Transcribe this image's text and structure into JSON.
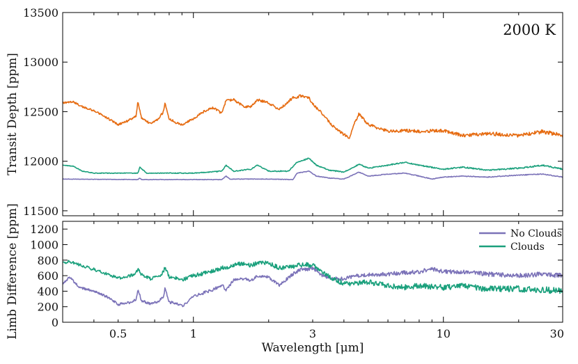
{
  "chart_data": [
    {
      "type": "line",
      "panel": "top",
      "annotation": "2000 K",
      "xlabel": "",
      "ylabel": "Transit Depth [ppm]",
      "xscale": "log",
      "xlim": [
        0.3,
        30
      ],
      "ylim": [
        11450,
        13500
      ],
      "yticks": [
        11500,
        12000,
        12500,
        13000,
        13500
      ],
      "yticklabels": [
        "11500",
        "12000",
        "12500",
        "13000",
        "13500"
      ],
      "series": [
        {
          "name": "Orange spectrum",
          "color": "#e66c12",
          "noise": 14,
          "x": [
            0.3,
            0.33,
            0.36,
            0.4,
            0.45,
            0.5,
            0.55,
            0.59,
            0.6,
            0.62,
            0.67,
            0.72,
            0.76,
            0.77,
            0.8,
            0.85,
            0.9,
            0.95,
            1.0,
            1.1,
            1.2,
            1.3,
            1.35,
            1.45,
            1.6,
            1.7,
            1.8,
            2.0,
            2.2,
            2.5,
            2.7,
            2.9,
            3.0,
            3.3,
            3.6,
            3.9,
            4.2,
            4.4,
            4.6,
            5.0,
            6.0,
            7.0,
            8.0,
            10.0,
            12.0,
            15.0,
            20.0,
            25.0,
            30.0
          ],
          "y": [
            12590,
            12600,
            12550,
            12510,
            12440,
            12370,
            12410,
            12460,
            12600,
            12440,
            12380,
            12420,
            12500,
            12590,
            12430,
            12390,
            12370,
            12400,
            12430,
            12500,
            12540,
            12480,
            12610,
            12620,
            12550,
            12550,
            12620,
            12590,
            12520,
            12640,
            12660,
            12640,
            12580,
            12470,
            12360,
            12290,
            12230,
            12380,
            12480,
            12370,
            12300,
            12310,
            12300,
            12310,
            12260,
            12280,
            12260,
            12300,
            12260
          ]
        },
        {
          "name": "Green spectrum",
          "color": "#1aa07c",
          "noise": 5,
          "x": [
            0.3,
            0.33,
            0.36,
            0.4,
            0.6,
            0.61,
            0.65,
            1.0,
            1.3,
            1.35,
            1.45,
            1.7,
            1.8,
            2.0,
            2.4,
            2.6,
            2.9,
            3.1,
            3.5,
            4.0,
            4.6,
            5.0,
            6.0,
            7.0,
            8.0,
            10.0,
            12.0,
            15.0,
            20.0,
            25.0,
            30.0
          ],
          "y": [
            11960,
            11950,
            11900,
            11880,
            11880,
            11940,
            11880,
            11880,
            11900,
            11960,
            11900,
            11920,
            11960,
            11900,
            11900,
            11990,
            12030,
            11960,
            11910,
            11890,
            11970,
            11930,
            11960,
            11990,
            11960,
            11920,
            11940,
            11910,
            11930,
            11960,
            11920
          ]
        },
        {
          "name": "Purple spectrum",
          "color": "#7b72b8",
          "noise": 3,
          "x": [
            0.3,
            0.6,
            0.61,
            0.62,
            1.0,
            1.3,
            1.35,
            1.4,
            2.0,
            2.5,
            2.6,
            2.9,
            3.1,
            3.5,
            4.0,
            4.6,
            5.0,
            6.0,
            7.0,
            8.0,
            9.0,
            10.0,
            12.0,
            15.0,
            20.0,
            25.0,
            30.0
          ],
          "y": [
            11820,
            11815,
            11830,
            11815,
            11815,
            11815,
            11850,
            11820,
            11820,
            11815,
            11880,
            11900,
            11850,
            11830,
            11820,
            11890,
            11850,
            11870,
            11880,
            11850,
            11820,
            11840,
            11850,
            11840,
            11860,
            11870,
            11840
          ]
        }
      ]
    },
    {
      "type": "line",
      "panel": "bottom",
      "xlabel": "Wavelength [μm]",
      "ylabel": "Limb Difference [ppm]",
      "xscale": "log",
      "xlim": [
        0.3,
        30
      ],
      "ylim": [
        0,
        1300
      ],
      "yticks": [
        0,
        200,
        400,
        600,
        800,
        1000,
        1200
      ],
      "yticklabels": [
        "0",
        "200",
        "400",
        "600",
        "800",
        "1000",
        "1200"
      ],
      "xticks": [
        0.5,
        1,
        3,
        10,
        30
      ],
      "xticklabels": [
        "0.5",
        "1",
        "3",
        "10",
        "30"
      ],
      "legend": {
        "location": "top-right",
        "entries": [
          "No Clouds",
          "Clouds"
        ]
      },
      "series": [
        {
          "name": "No Clouds",
          "color": "#7b72b8",
          "noise": 22,
          "x": [
            0.3,
            0.32,
            0.35,
            0.4,
            0.45,
            0.5,
            0.55,
            0.59,
            0.6,
            0.62,
            0.67,
            0.72,
            0.76,
            0.77,
            0.8,
            0.85,
            0.9,
            0.95,
            1.0,
            1.1,
            1.2,
            1.3,
            1.35,
            1.45,
            1.6,
            1.7,
            1.8,
            2.0,
            2.2,
            2.5,
            2.7,
            2.9,
            3.0,
            3.3,
            3.6,
            4.0,
            4.5,
            5.0,
            6.0,
            7.0,
            8.0,
            9.0,
            10.0,
            12.0,
            15.0,
            20.0,
            25.0,
            30.0
          ],
          "y": [
            500,
            580,
            450,
            400,
            330,
            230,
            250,
            290,
            420,
            280,
            240,
            260,
            330,
            440,
            260,
            240,
            210,
            260,
            330,
            380,
            420,
            480,
            420,
            540,
            560,
            530,
            600,
            580,
            480,
            620,
            680,
            680,
            700,
            600,
            560,
            560,
            600,
            610,
            620,
            640,
            650,
            690,
            650,
            650,
            620,
            600,
            620,
            600
          ]
        },
        {
          "name": "Clouds",
          "color": "#1aa07c",
          "noise": 30,
          "x": [
            0.3,
            0.32,
            0.35,
            0.4,
            0.45,
            0.5,
            0.55,
            0.59,
            0.6,
            0.62,
            0.67,
            0.72,
            0.76,
            0.77,
            0.8,
            0.85,
            0.9,
            0.95,
            1.0,
            1.1,
            1.2,
            1.3,
            1.35,
            1.45,
            1.6,
            1.7,
            1.8,
            2.0,
            2.2,
            2.5,
            2.7,
            2.9,
            3.0,
            3.3,
            3.6,
            4.0,
            4.5,
            5.0,
            6.0,
            7.0,
            8.0,
            10.0,
            12.0,
            15.0,
            20.0,
            25.0,
            30.0
          ],
          "y": [
            760,
            780,
            740,
            680,
            620,
            570,
            590,
            630,
            700,
            610,
            560,
            580,
            650,
            710,
            580,
            570,
            550,
            570,
            600,
            630,
            660,
            700,
            700,
            740,
            760,
            730,
            760,
            760,
            700,
            720,
            740,
            740,
            730,
            650,
            560,
            500,
            500,
            520,
            470,
            450,
            470,
            450,
            470,
            430,
            430,
            420,
            400
          ]
        }
      ]
    }
  ]
}
